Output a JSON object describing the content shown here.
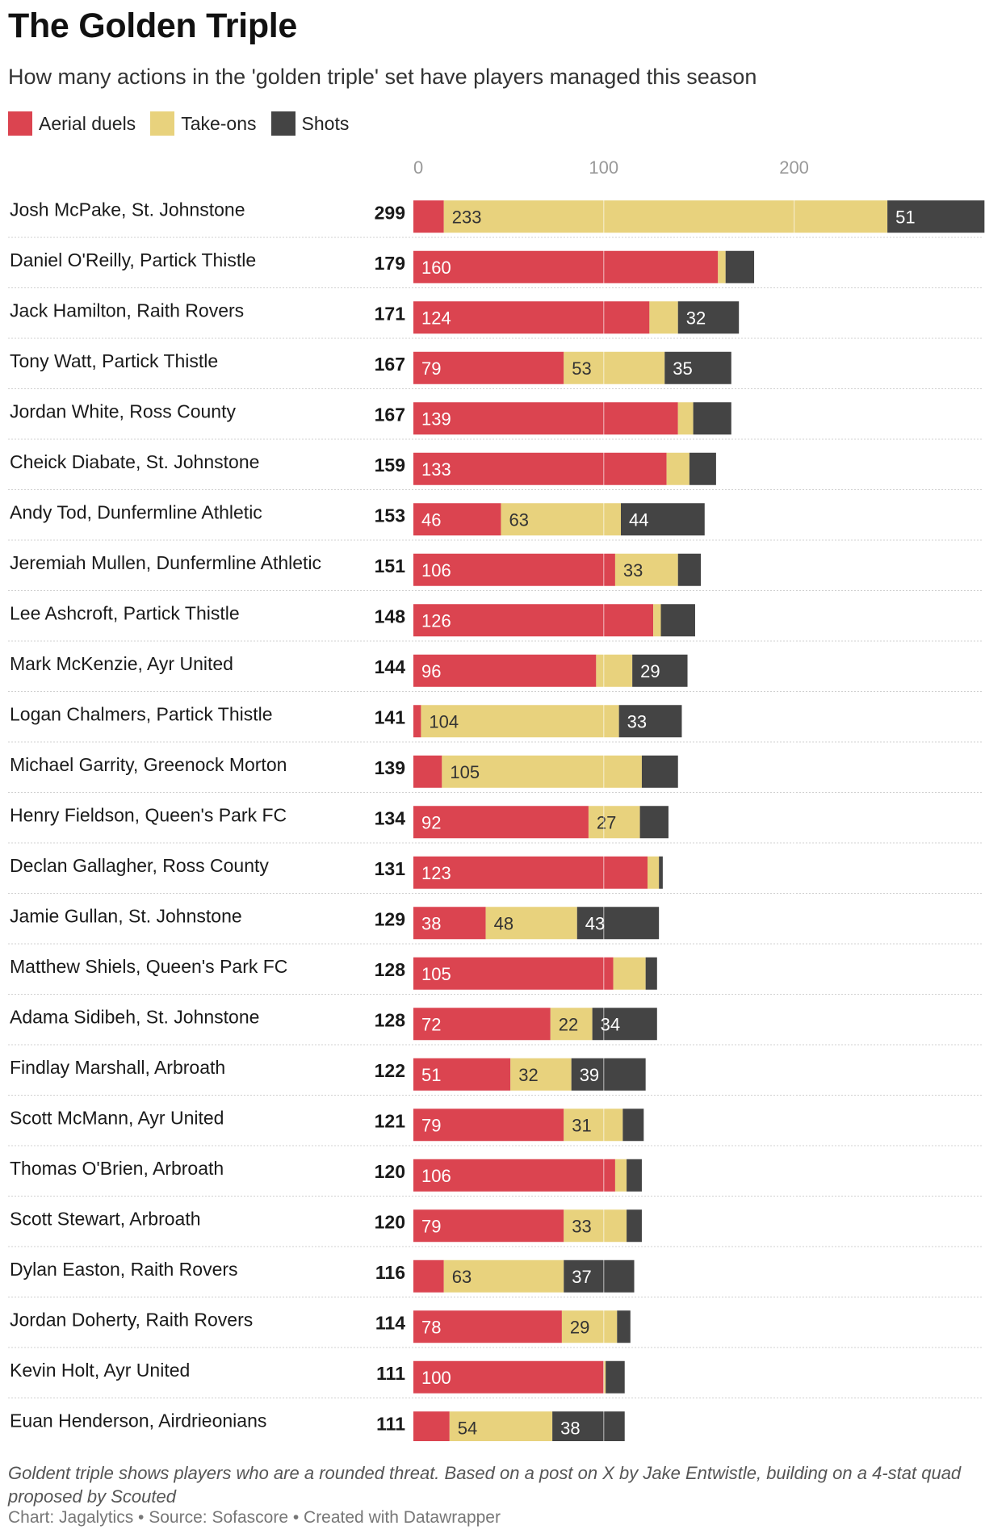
{
  "title": "The Golden Triple",
  "subtitle": "How many actions in the 'golden triple' set have players managed this season",
  "legend": [
    {
      "label": "Aerial duels",
      "color": "#db4450",
      "icon": "red-square"
    },
    {
      "label": "Take-ons",
      "color": "#e8d27d",
      "icon": "yellow-square"
    },
    {
      "label": "Shots",
      "color": "#444444",
      "icon": "dark-square"
    }
  ],
  "chart_data": {
    "type": "bar",
    "orientation": "horizontal",
    "stacked": true,
    "title": "The Golden Triple",
    "xlim": [
      0,
      299
    ],
    "ticks": [
      0,
      100,
      200
    ],
    "tick_labels": [
      "0",
      "100",
      "200"
    ],
    "grid": true,
    "categories": [
      "Josh McPake, St. Johnstone",
      "Daniel O'Reilly, Partick Thistle",
      "Jack Hamilton, Raith Rovers",
      "Tony Watt, Partick Thistle",
      "Jordan White, Ross County",
      "Cheick Diabate, St. Johnstone",
      "Andy Tod, Dunfermline Athletic",
      "Jeremiah Mullen, Dunfermline Athletic",
      "Lee Ashcroft, Partick Thistle",
      "Mark McKenzie, Ayr United",
      "Logan Chalmers, Partick Thistle",
      "Michael Garrity, Greenock Morton",
      "Henry Fieldson, Queen's Park FC",
      "Declan Gallagher, Ross County",
      "Jamie Gullan, St. Johnstone",
      "Matthew Shiels, Queen's Park FC",
      "Adama Sidibeh, St. Johnstone",
      "Findlay Marshall, Arbroath",
      "Scott McMann, Ayr United",
      "Thomas O'Brien, Arbroath",
      "Scott Stewart, Arbroath",
      "Dylan Easton, Raith Rovers",
      "Jordan Doherty, Raith Rovers",
      "Kevin Holt, Ayr United",
      "Euan Henderson, Airdrieonians"
    ],
    "totals": [
      299,
      179,
      171,
      167,
      167,
      159,
      153,
      151,
      148,
      144,
      141,
      139,
      134,
      131,
      129,
      128,
      128,
      122,
      121,
      120,
      120,
      116,
      114,
      111,
      111
    ],
    "series": [
      {
        "name": "Aerial duels",
        "color": "#db4450",
        "label_color": "#ffffff",
        "values": [
          16,
          160,
          124,
          79,
          139,
          133,
          46,
          106,
          126,
          96,
          4,
          15,
          92,
          123,
          38,
          105,
          72,
          51,
          79,
          106,
          79,
          16,
          78,
          100,
          19
        ],
        "labels": [
          null,
          "160",
          "124",
          "79",
          "139",
          "133",
          "46",
          "106",
          "126",
          "96",
          null,
          null,
          "92",
          "123",
          "38",
          "105",
          "72",
          "51",
          "79",
          "106",
          "79",
          null,
          "78",
          "100",
          null
        ]
      },
      {
        "name": "Take-ons",
        "color": "#e8d27d",
        "label_color": "#333333",
        "values": [
          233,
          4,
          15,
          53,
          8,
          12,
          63,
          33,
          4,
          19,
          104,
          105,
          27,
          6,
          48,
          17,
          22,
          32,
          31,
          6,
          33,
          63,
          29,
          1,
          54
        ],
        "labels": [
          "233",
          null,
          null,
          "53",
          null,
          null,
          "63",
          "33",
          null,
          null,
          "104",
          "105",
          "27",
          null,
          "48",
          null,
          "22",
          "32",
          "31",
          null,
          "33",
          "63",
          "29",
          null,
          "54"
        ]
      },
      {
        "name": "Shots",
        "color": "#444444",
        "label_color": "#ffffff",
        "values": [
          51,
          15,
          32,
          35,
          20,
          14,
          44,
          12,
          18,
          29,
          33,
          19,
          15,
          2,
          43,
          6,
          34,
          39,
          11,
          8,
          8,
          37,
          7,
          10,
          38
        ],
        "labels": [
          "51",
          null,
          "32",
          "35",
          null,
          null,
          "44",
          null,
          null,
          "29",
          "33",
          null,
          null,
          null,
          "43",
          null,
          "34",
          "39",
          null,
          null,
          null,
          "37",
          null,
          null,
          "38"
        ]
      }
    ]
  },
  "footer": {
    "note": "Goldent triple shows players who are a rounded threat. Based on a post on X by Jake Entwistle, building on a 4-stat quad proposed by Scouted",
    "credit": "Chart: Jagalytics • Source: Sofascore • Created with Datawrapper"
  }
}
